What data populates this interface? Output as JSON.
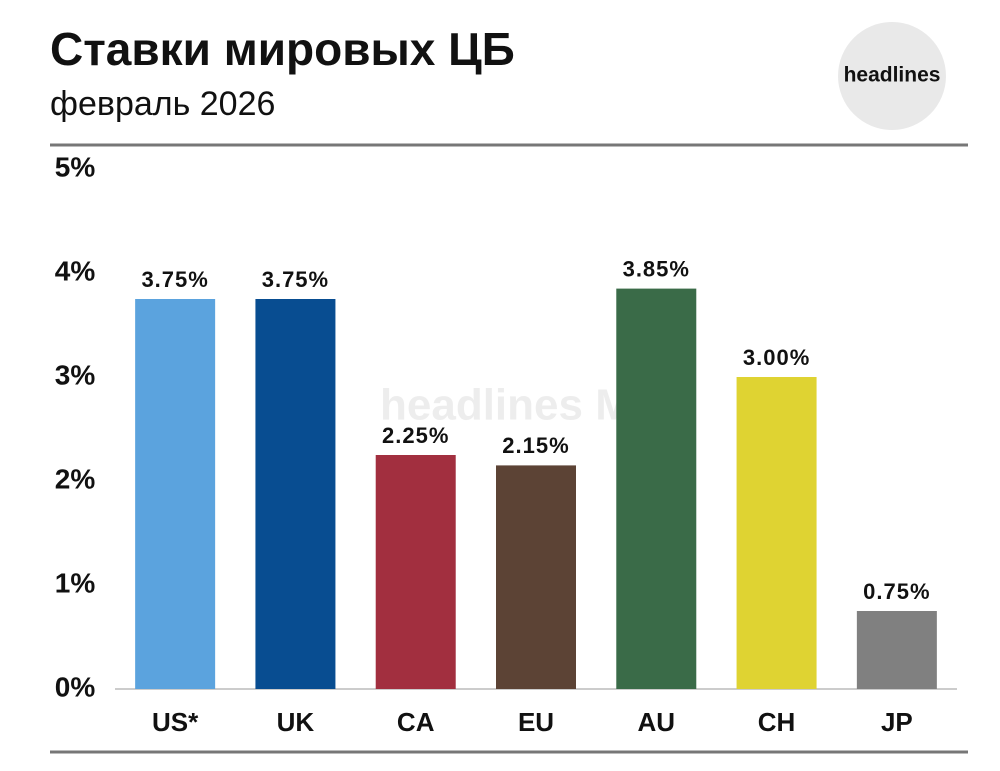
{
  "chart_data": {
    "type": "bar",
    "title": "Ставки мировых ЦБ",
    "subtitle": "февраль 2026",
    "logo": "headlines",
    "watermark": "headlines M",
    "categories": [
      "US*",
      "UK",
      "CA",
      "EU",
      "AU",
      "CH",
      "JP"
    ],
    "values": [
      3.75,
      3.75,
      2.25,
      2.15,
      3.85,
      3.0,
      0.75
    ],
    "value_labels": [
      "3.75%",
      "3.75%",
      "2.25%",
      "2.15%",
      "3.85%",
      "3.00%",
      "0.75%"
    ],
    "colors": [
      "#5ba3de",
      "#084d91",
      "#a22f3f",
      "#5c4335",
      "#3a6b48",
      "#dfd332",
      "#808080"
    ],
    "ylim": [
      0,
      5
    ],
    "yticks": [
      {
        "value": 0,
        "label": "0%"
      },
      {
        "value": 1,
        "label": "1%"
      },
      {
        "value": 2,
        "label": "2%"
      },
      {
        "value": 3,
        "label": "3%"
      },
      {
        "value": 4,
        "label": "4%"
      },
      {
        "value": 5,
        "label": "5%"
      }
    ]
  }
}
